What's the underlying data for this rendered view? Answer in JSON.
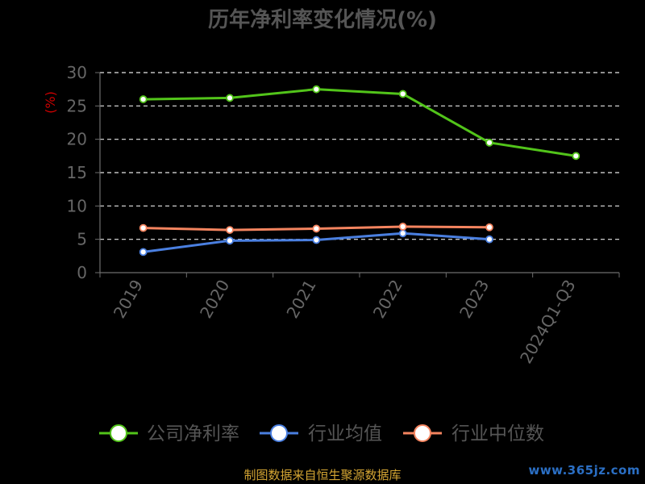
{
  "chart_data": {
    "type": "line",
    "title": "历年净利率变化情况(%)",
    "ylabel": "(%)",
    "xlabel": "",
    "categories": [
      "2019",
      "2020",
      "2021",
      "2022",
      "2023",
      "2024Q1-Q3"
    ],
    "ylim": [
      0,
      30
    ],
    "yticks": [
      "0",
      "5",
      "10",
      "15",
      "20",
      "25",
      "30"
    ],
    "grid": true,
    "legend_position": "bottom",
    "series": [
      {
        "name": "公司净利率",
        "color": "#52c41a",
        "values": [
          26.0,
          26.2,
          27.5,
          26.8,
          19.5,
          17.5
        ]
      },
      {
        "name": "行业均值",
        "color": "#4a7fe0",
        "values": [
          3.1,
          4.8,
          4.9,
          5.9,
          5.0,
          null
        ]
      },
      {
        "name": "行业中位数",
        "color": "#f4845f",
        "values": [
          6.7,
          6.4,
          6.6,
          6.9,
          6.8,
          null
        ]
      }
    ]
  },
  "footer": {
    "source": "制图数据来自恒生聚源数据库",
    "watermark": "www.365jz.com"
  }
}
